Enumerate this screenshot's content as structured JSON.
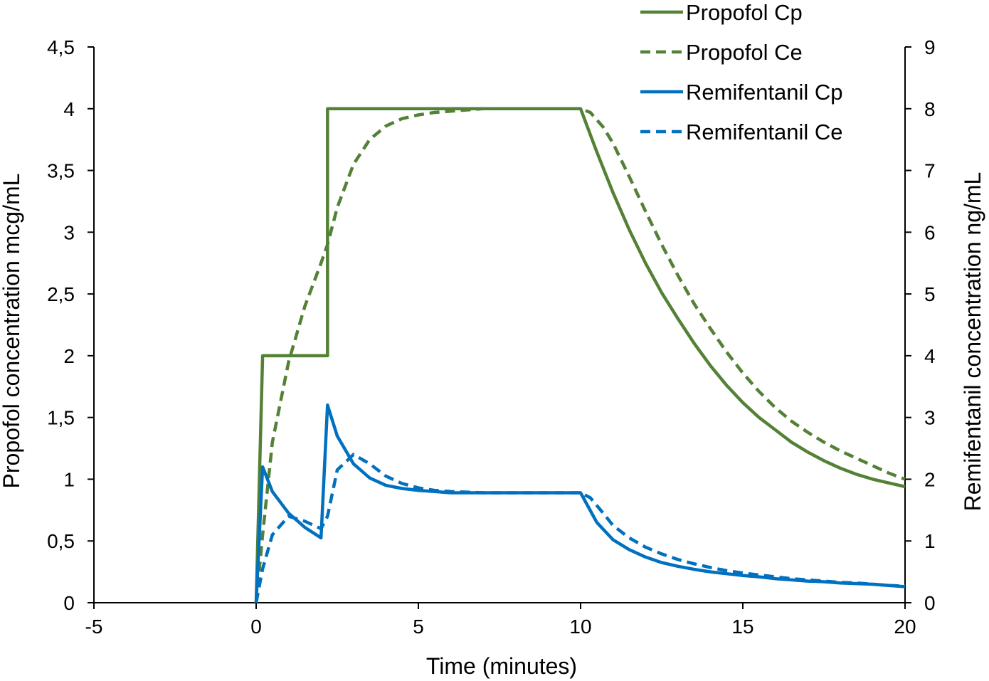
{
  "chart_data": {
    "type": "line",
    "title": "",
    "xlabel": "Time (minutes)",
    "ylabel": "Propofol concentration mcg/mL",
    "y2label": "Remifentanil concentration  ng/mL",
    "xlim": [
      -5,
      20
    ],
    "ylim": [
      0,
      4.5
    ],
    "y2lim": [
      0,
      9
    ],
    "x_ticks": [
      -5,
      0,
      5,
      10,
      15,
      20
    ],
    "x_tick_labels": [
      "-5",
      "0",
      "5",
      "10",
      "15",
      "20"
    ],
    "y_ticks": [
      0,
      0.5,
      1,
      1.5,
      2,
      2.5,
      3,
      3.5,
      4,
      4.5
    ],
    "y_tick_labels": [
      "0",
      "0,5",
      "1",
      "1,5",
      "2",
      "2,5",
      "3",
      "3,5",
      "4",
      "4,5"
    ],
    "y2_ticks": [
      0,
      1,
      2,
      3,
      4,
      5,
      6,
      7,
      8,
      9
    ],
    "y2_tick_labels": [
      "0",
      "1",
      "2",
      "3",
      "4",
      "5",
      "6",
      "7",
      "8",
      "9"
    ],
    "grid": false,
    "legend_position": "top-right",
    "colors": {
      "propofol": "#538135",
      "remifentanil": "#0070C0"
    },
    "series": [
      {
        "name": "Propofol Cp",
        "axis": "left",
        "style": "solid",
        "color": "#538135",
        "x": [
          0,
          0.2,
          0.2,
          2,
          2.2,
          2.2,
          10,
          10.5,
          11,
          11.5,
          12,
          12.5,
          13,
          13.5,
          14,
          14.5,
          15,
          15.5,
          16,
          16.5,
          17,
          17.5,
          18,
          18.5,
          19,
          19.5,
          20
        ],
        "y": [
          0,
          2,
          2,
          2,
          2,
          4,
          4,
          3.65,
          3.32,
          3.02,
          2.75,
          2.51,
          2.3,
          2.1,
          1.92,
          1.76,
          1.62,
          1.5,
          1.4,
          1.3,
          1.22,
          1.15,
          1.09,
          1.04,
          1,
          0.97,
          0.94
        ]
      },
      {
        "name": "Propofol Ce",
        "axis": "left",
        "style": "dashed",
        "color": "#538135",
        "x": [
          0,
          0.2,
          0.5,
          1,
          1.5,
          2,
          2.2,
          2.5,
          3,
          3.5,
          4,
          4.5,
          5,
          5.5,
          6,
          7,
          8,
          10,
          10.3,
          10.7,
          11,
          11.5,
          12,
          12.5,
          13,
          13.5,
          14,
          14.5,
          15,
          15.5,
          16,
          16.5,
          17,
          17.5,
          18,
          18.5,
          19,
          19.5,
          20
        ],
        "y": [
          0,
          0.55,
          1.3,
          1.95,
          2.4,
          2.75,
          2.9,
          3.2,
          3.55,
          3.75,
          3.86,
          3.92,
          3.95,
          3.97,
          3.98,
          4,
          4,
          4,
          3.97,
          3.85,
          3.72,
          3.45,
          3.17,
          2.9,
          2.65,
          2.42,
          2.22,
          2.03,
          1.86,
          1.71,
          1.58,
          1.47,
          1.38,
          1.3,
          1.23,
          1.17,
          1.11,
          1.05,
          1
        ]
      },
      {
        "name": "Remifentanil Cp",
        "axis": "right",
        "style": "solid",
        "color": "#0070C0",
        "x": [
          0,
          0.2,
          0.5,
          1,
          1.5,
          2,
          2.2,
          2.5,
          3,
          3.5,
          4,
          4.5,
          5,
          5.5,
          6,
          7,
          8,
          10,
          10.5,
          11,
          11.5,
          12,
          12.5,
          13,
          13.5,
          14,
          14.5,
          15,
          15.5,
          16,
          16.5,
          17,
          17.5,
          18,
          18.5,
          19,
          19.5,
          20
        ],
        "y": [
          0,
          2.2,
          1.8,
          1.45,
          1.22,
          1.05,
          3.2,
          2.7,
          2.25,
          2.02,
          1.9,
          1.85,
          1.82,
          1.8,
          1.78,
          1.78,
          1.78,
          1.78,
          1.3,
          1.02,
          0.86,
          0.74,
          0.65,
          0.59,
          0.54,
          0.5,
          0.47,
          0.44,
          0.42,
          0.39,
          0.37,
          0.35,
          0.34,
          0.32,
          0.31,
          0.3,
          0.28,
          0.26
        ]
      },
      {
        "name": "Remifentanil Ce",
        "axis": "right",
        "style": "dashed",
        "color": "#0070C0",
        "x": [
          0,
          0.2,
          0.5,
          1,
          1.5,
          2,
          2.2,
          2.5,
          3,
          3.5,
          4,
          4.5,
          5,
          5.5,
          6,
          7,
          8,
          10,
          10.3,
          10.7,
          11,
          11.5,
          12,
          12.5,
          13,
          13.5,
          14,
          14.5,
          15,
          15.5,
          16,
          16.5,
          17,
          17.5,
          18,
          18.5,
          19,
          19.5,
          20
        ],
        "y": [
          0,
          0.55,
          1.1,
          1.4,
          1.32,
          1.2,
          1.4,
          2.15,
          2.4,
          2.25,
          2.05,
          1.93,
          1.86,
          1.82,
          1.8,
          1.78,
          1.78,
          1.78,
          1.7,
          1.45,
          1.25,
          1.05,
          0.9,
          0.79,
          0.7,
          0.63,
          0.57,
          0.52,
          0.48,
          0.45,
          0.42,
          0.39,
          0.37,
          0.35,
          0.33,
          0.32,
          0.3,
          0.28,
          0.27
        ]
      }
    ]
  }
}
